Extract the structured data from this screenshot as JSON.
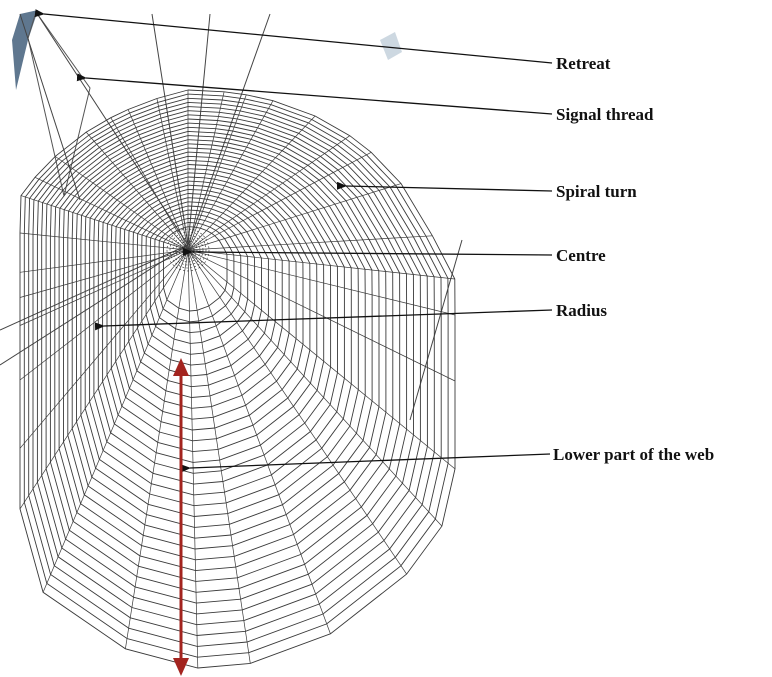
{
  "labels": {
    "retreat": "Retreat",
    "signal_thread": "Signal thread",
    "spiral_turn": "Spiral turn",
    "centre": "Centre",
    "radius": "Radius",
    "lower_part": "Lower part of the web"
  },
  "colors": {
    "web_thread": "#3a3a3a",
    "pointer": "#111111",
    "extent_arrow": "#a3241f",
    "retreat_shadow": "#2a4a6a"
  }
}
